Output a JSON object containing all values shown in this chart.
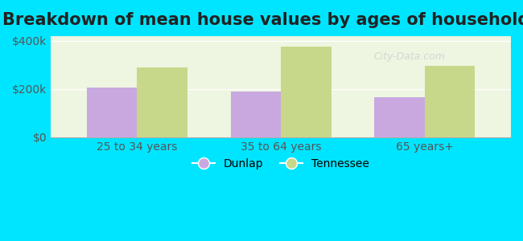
{
  "title": "Breakdown of mean house values by ages of householders",
  "categories": [
    "25 to 34 years",
    "35 to 64 years",
    "65 years+"
  ],
  "dunlap_values": [
    205000,
    190000,
    168000
  ],
  "tennessee_values": [
    290000,
    375000,
    295000
  ],
  "dunlap_color": "#c9a8e0",
  "tennessee_color": "#c8d88a",
  "background_outer": "#00e5ff",
  "background_inner": "#eef5e0",
  "ylim": [
    0,
    420000
  ],
  "ytick_labels": [
    "$0",
    "$200k",
    "$400k"
  ],
  "bar_width": 0.35,
  "legend_dunlap": "Dunlap",
  "legend_tennessee": "Tennessee",
  "title_fontsize": 15,
  "tick_fontsize": 10,
  "legend_fontsize": 10
}
